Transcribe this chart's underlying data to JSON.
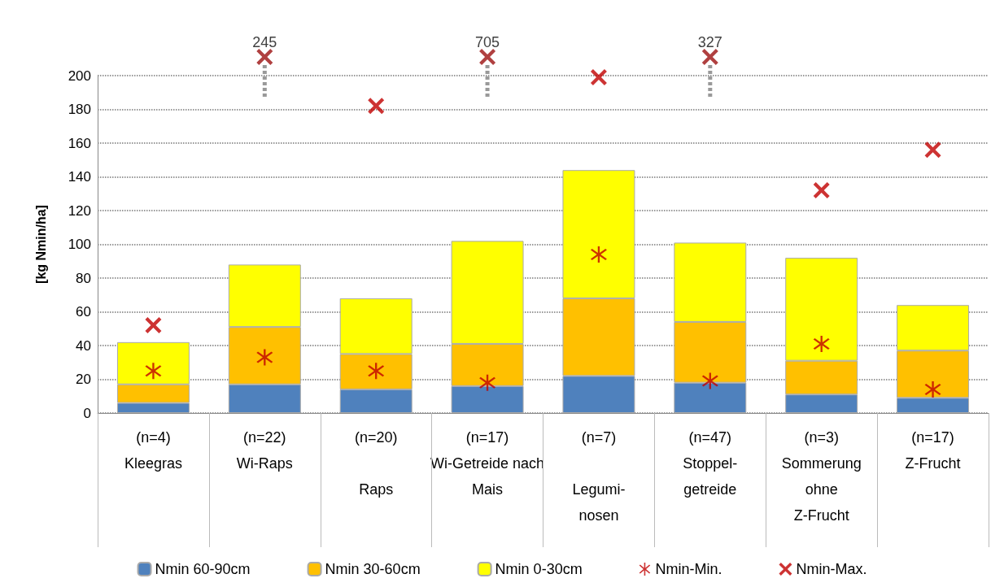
{
  "chart_data": {
    "type": "bar",
    "stacked": true,
    "ylabel": "[kg Nmin/ha]",
    "categories": [
      "(n=4)\nKleegras",
      "(n=22)\nWi-Raps",
      "(n=20)\n\nRaps",
      "(n=17)\n\nMais",
      "(n=7)\n\nLegumi-\nnosen",
      "(n=47)\nStoppel-\ngetreide",
      "(n=3)\nSommerung\nohne\nZ-Frucht",
      "(n=17)\nZ-Frucht"
    ],
    "series": [
      {
        "name": "Nmin 60-90cm",
        "color": "#4f81bd",
        "values": [
          6,
          17,
          14,
          16,
          22,
          18,
          11,
          9
        ]
      },
      {
        "name": "Nmin 30-60cm",
        "color": "#ffc000",
        "values": [
          11,
          34,
          21,
          25,
          46,
          36,
          20,
          28
        ]
      },
      {
        "name": "Nmin 0-30cm",
        "color": "#ffff00",
        "values": [
          25,
          37,
          33,
          61,
          76,
          47,
          61,
          27
        ]
      },
      {
        "name": "Nmin-Min.",
        "type": "scatter",
        "marker": "star",
        "color": "#c00000",
        "values": [
          25,
          33,
          25,
          18,
          94,
          19,
          41,
          14
        ]
      },
      {
        "name": "Nmin-Max.",
        "type": "scatter",
        "marker": "cross",
        "color": "#c00000",
        "values": [
          52,
          null,
          182,
          null,
          199,
          null,
          132,
          156
        ]
      }
    ],
    "annotations": [
      "Wi-Getreide nach",
      {
        "text": "245",
        "x": "(n=22)\nWi-Raps"
      },
      {
        "text": "705",
        "x": "(n=17)\n\nMais"
      },
      {
        "text": "327",
        "x": "(n=47)\nStoppel-\ngetreide"
      }
    ],
    "ylim": [
      0,
      200
    ],
    "yticks": [
      0,
      20,
      40,
      60,
      80,
      100,
      120,
      140,
      160,
      180,
      200
    ],
    "grid": "y",
    "legend": "bottom"
  }
}
